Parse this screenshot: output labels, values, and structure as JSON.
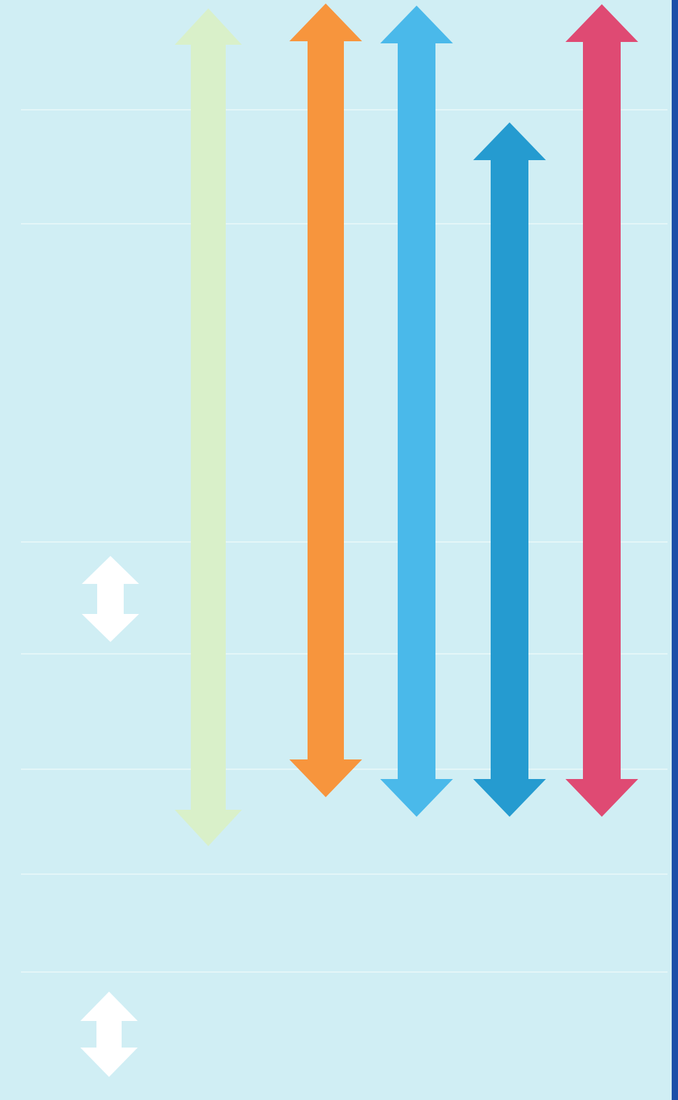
{
  "diagram": {
    "background_color": "#d0eef4",
    "border_color": "#1a4fa8",
    "rule_color": "#e4f6f8",
    "arrows": [
      {
        "name": "light-green-arrow",
        "color": "#d9f0c9"
      },
      {
        "name": "orange-arrow",
        "color": "#f7953d"
      },
      {
        "name": "sky-blue-arrow",
        "color": "#4ab9ea"
      },
      {
        "name": "dark-blue-arrow",
        "color": "#259bd0"
      },
      {
        "name": "pink-arrow",
        "color": "#df4a73"
      }
    ],
    "small_arrows": [
      {
        "name": "white-arrow-upper",
        "color": "#ffffff"
      },
      {
        "name": "white-arrow-lower",
        "color": "#ffffff"
      }
    ]
  }
}
